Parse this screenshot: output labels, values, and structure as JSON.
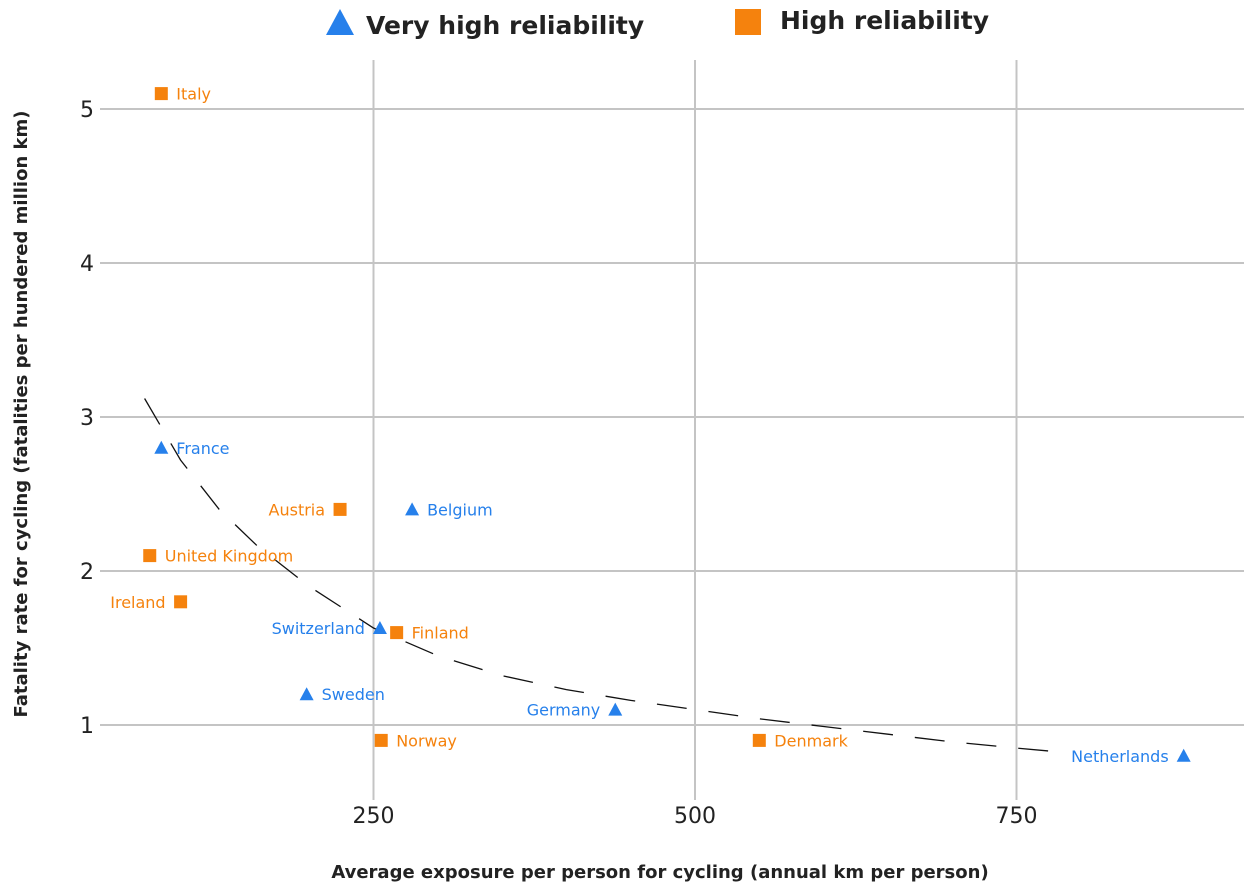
{
  "chart_data": {
    "type": "scatter",
    "title": "",
    "xlabel": "Average exposure per person for cycling (annual km per person)",
    "ylabel": "Fatality rate for cycling (fatalities per hundered million km)",
    "xlim": [
      0,
      950
    ],
    "ylim": [
      0.5,
      5.3
    ],
    "x_ticks": [
      250,
      500,
      750
    ],
    "y_ticks": [
      1,
      2,
      3,
      4,
      5
    ],
    "grid": true,
    "legend_position": "top",
    "colors": {
      "very_high": "#2680eb",
      "high": "#f5820d"
    },
    "series": [
      {
        "name": "Very high reliability",
        "marker": "triangle",
        "color": "#2680eb",
        "points": [
          {
            "label": "France",
            "x": 85,
            "y": 2.8,
            "label_side": "right"
          },
          {
            "label": "Belgium",
            "x": 280,
            "y": 2.4,
            "label_side": "right"
          },
          {
            "label": "Switzerland",
            "x": 255,
            "y": 1.63,
            "label_side": "left"
          },
          {
            "label": "Sweden",
            "x": 198,
            "y": 1.2,
            "label_side": "right"
          },
          {
            "label": "Germany",
            "x": 438,
            "y": 1.1,
            "label_side": "left"
          },
          {
            "label": "Netherlands",
            "x": 880,
            "y": 0.8,
            "label_side": "left"
          }
        ]
      },
      {
        "name": "High reliability",
        "marker": "square",
        "color": "#f5820d",
        "points": [
          {
            "label": "Italy",
            "x": 85,
            "y": 5.1,
            "label_side": "right"
          },
          {
            "label": "Austria",
            "x": 224,
            "y": 2.4,
            "label_side": "left"
          },
          {
            "label": "United Kingdom",
            "x": 76,
            "y": 2.1,
            "label_side": "right"
          },
          {
            "label": "Ireland",
            "x": 100,
            "y": 1.8,
            "label_side": "left"
          },
          {
            "label": "Finland",
            "x": 268,
            "y": 1.6,
            "label_side": "right"
          },
          {
            "label": "Norway",
            "x": 256,
            "y": 0.9,
            "label_side": "right"
          },
          {
            "label": "Denmark",
            "x": 550,
            "y": 0.9,
            "label_side": "right"
          }
        ]
      }
    ],
    "trendline": {
      "style": "dashed",
      "color": "#111111",
      "points": [
        {
          "x": 72,
          "y": 3.12
        },
        {
          "x": 100,
          "y": 2.72
        },
        {
          "x": 130,
          "y": 2.4
        },
        {
          "x": 160,
          "y": 2.16
        },
        {
          "x": 200,
          "y": 1.9
        },
        {
          "x": 250,
          "y": 1.63
        },
        {
          "x": 300,
          "y": 1.45
        },
        {
          "x": 350,
          "y": 1.32
        },
        {
          "x": 400,
          "y": 1.23
        },
        {
          "x": 450,
          "y": 1.16
        },
        {
          "x": 500,
          "y": 1.1
        },
        {
          "x": 550,
          "y": 1.04
        },
        {
          "x": 600,
          "y": 0.99
        },
        {
          "x": 650,
          "y": 0.94
        },
        {
          "x": 700,
          "y": 0.89
        },
        {
          "x": 750,
          "y": 0.85
        },
        {
          "x": 790,
          "y": 0.82
        }
      ]
    }
  }
}
